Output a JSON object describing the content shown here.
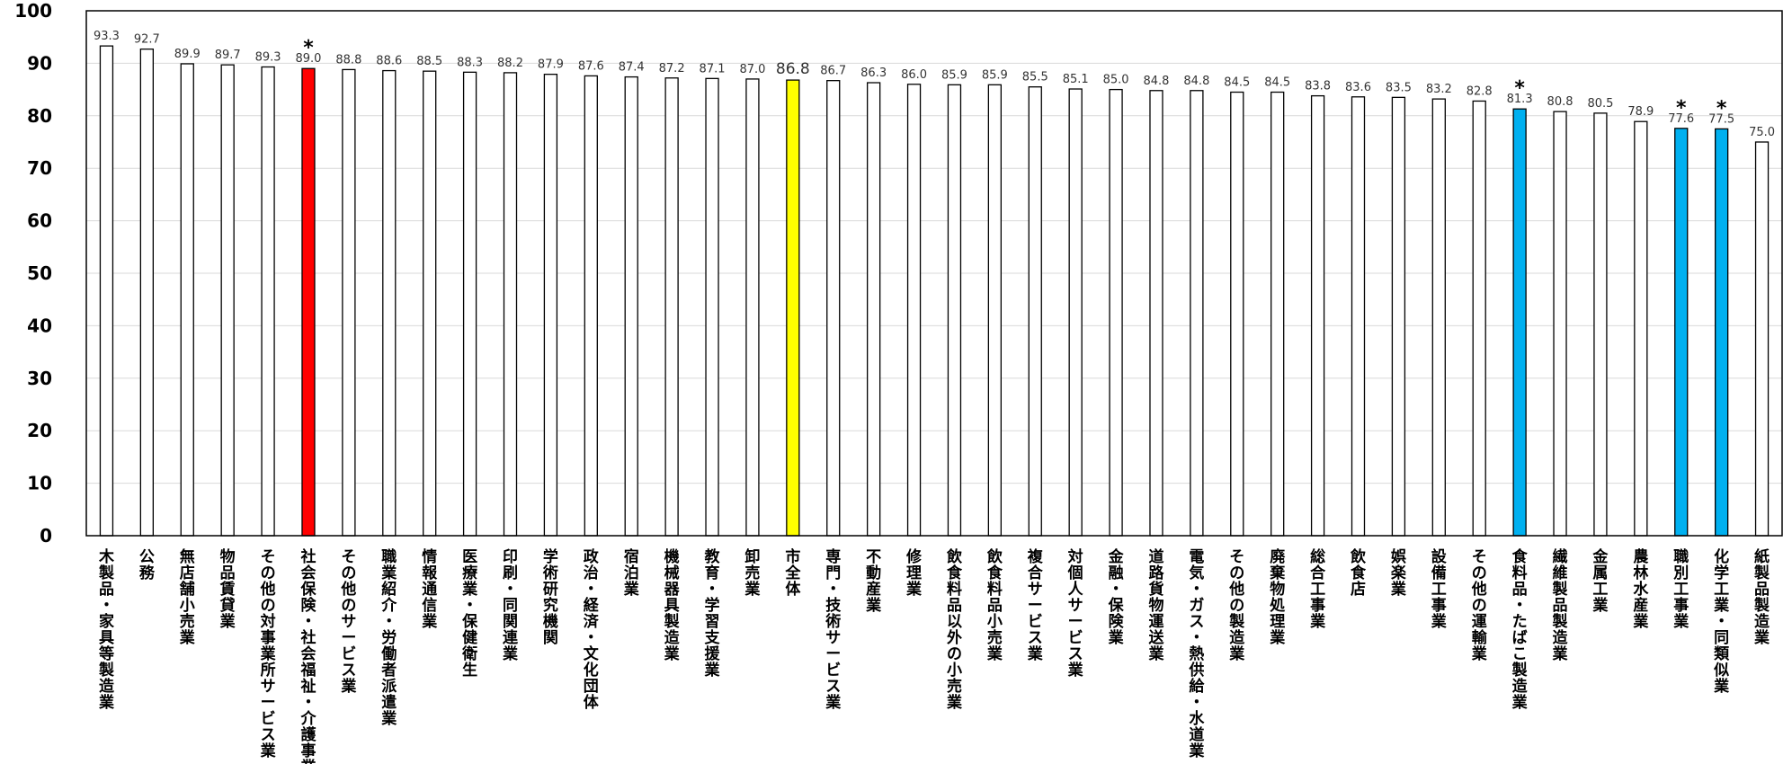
{
  "chart_data": {
    "type": "bar",
    "title": "",
    "xlabel": "",
    "ylabel": "",
    "ylim": [
      0,
      100
    ],
    "yticks": [
      0,
      10,
      20,
      30,
      40,
      50,
      60,
      70,
      80,
      90,
      100
    ],
    "grid": true,
    "legend": "none",
    "colors": {
      "default": "#ffffff",
      "red": "#ff0000",
      "yellow": "#ffff00",
      "blue": "#00b0f0",
      "outline": "#000000",
      "gridline": "#d9d9d9"
    },
    "categories": [
      "木製品・家具等製造業",
      "公務",
      "無店舗小売業",
      "物品賃貸業",
      "その他の対事業所サービス業",
      "社会保険・社会福祉・介護事業",
      "その他のサービス業",
      "職業紹介・労働者派遣業",
      "情報通信業",
      "医療業・保健衛生",
      "印刷・同関連業",
      "学術研究機関",
      "政治・経済・文化団体",
      "宿泊業",
      "機械器具製造業",
      "教育・学習支援業",
      "卸売業",
      "市全体",
      "専門・技術サービス業",
      "不動産業",
      "修理業",
      "飲食料品以外の小売業",
      "飲食料品小売業",
      "複合サービス業",
      "対個人サービス業",
      "金融・保険業",
      "道路貨物運送業",
      "電気・ガス・熱供給・水道業",
      "その他の製造業",
      "廃棄物処理業",
      "総合工事業",
      "飲食店",
      "娯楽業",
      "設備工事業",
      "その他の運輸業",
      "食料品・たばこ製造業",
      "繊維製品製造業",
      "金属工業",
      "農林水産業",
      "職別工事業",
      "化学工業・同類似業",
      "紙製品製造業"
    ],
    "values": [
      93.3,
      92.7,
      89.9,
      89.7,
      89.3,
      89.0,
      88.8,
      88.6,
      88.5,
      88.3,
      88.2,
      87.9,
      87.6,
      87.4,
      87.2,
      87.1,
      87.0,
      86.8,
      86.7,
      86.3,
      86.0,
      85.9,
      85.9,
      85.5,
      85.1,
      85.0,
      84.8,
      84.8,
      84.5,
      84.5,
      83.8,
      83.6,
      83.5,
      83.2,
      82.8,
      81.3,
      80.8,
      80.5,
      78.9,
      77.6,
      77.5,
      75.0
    ],
    "value_labels": [
      "93.3",
      "92.7",
      "89.9",
      "89.7",
      "89.3",
      "89.0",
      "88.8",
      "88.6",
      "88.5",
      "88.3",
      "88.2",
      "87.9",
      "87.6",
      "87.4",
      "87.2",
      "87.1",
      "87.0",
      "86.8",
      "86.7",
      "86.3",
      "86.0",
      "85.9",
      "85.9",
      "85.5",
      "85.1",
      "85.0",
      "84.8",
      "84.8",
      "84.5",
      "84.5",
      "83.8",
      "83.6",
      "83.5",
      "83.2",
      "82.8",
      "81.3",
      "80.8",
      "80.5",
      "78.9",
      "77.6",
      "77.5",
      "75.0"
    ],
    "bar_color_keys": [
      "default",
      "default",
      "default",
      "default",
      "default",
      "red",
      "default",
      "default",
      "default",
      "default",
      "default",
      "default",
      "default",
      "default",
      "default",
      "default",
      "default",
      "yellow",
      "default",
      "default",
      "default",
      "default",
      "default",
      "default",
      "default",
      "default",
      "default",
      "default",
      "default",
      "default",
      "default",
      "default",
      "default",
      "default",
      "default",
      "blue",
      "default",
      "default",
      "default",
      "blue",
      "blue",
      "default"
    ],
    "asterisk_marker": "*",
    "asterisk_indices": [
      5,
      35,
      39,
      40
    ],
    "emphasized_label_index": 17
  }
}
